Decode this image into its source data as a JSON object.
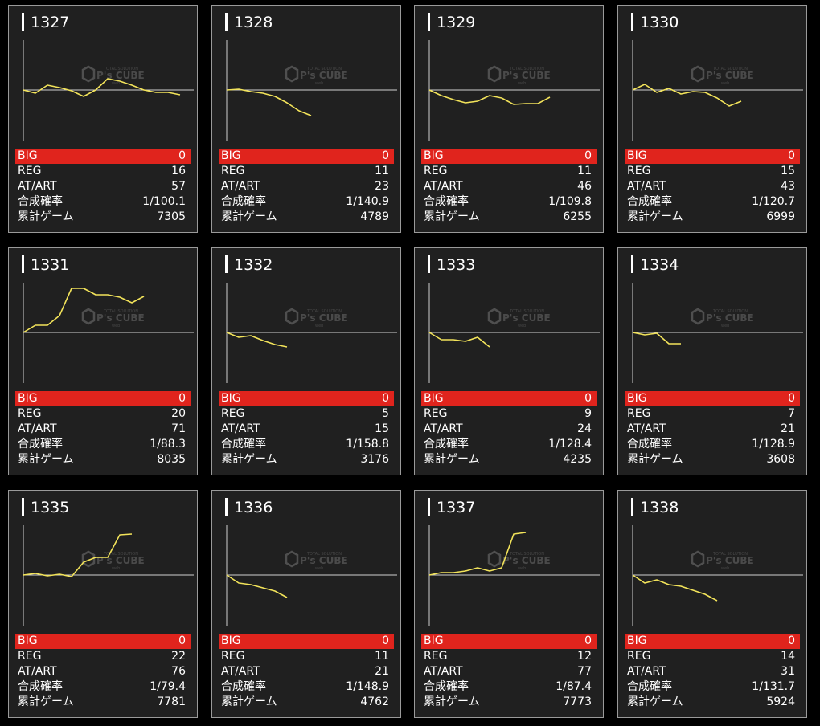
{
  "labels": {
    "big": "BIG",
    "reg": "REG",
    "at_art": "AT/ART",
    "combined_prob": "合成確率",
    "total_games": "累計ゲーム"
  },
  "watermark": {
    "small_top": "TOTAL SOLUTION",
    "main": "P's CUBE",
    "small_bottom": "web"
  },
  "colors": {
    "card_bg": "#202020",
    "card_border": "#9a9a9a",
    "big_row": "#e0241d",
    "graph_line": "#f2e35a",
    "axis": "#d0d0d0"
  },
  "machines": [
    {
      "number": "1327",
      "big": "0",
      "reg": "16",
      "at_art": "57",
      "prob": "1/100.1",
      "games": "7305",
      "trend": [
        0,
        -4,
        6,
        3,
        -1,
        -8,
        0,
        14,
        11,
        6,
        0,
        -3,
        -3,
        -6
      ]
    },
    {
      "number": "1328",
      "big": "0",
      "reg": "11",
      "at_art": "23",
      "prob": "1/140.9",
      "games": "4789",
      "trend": [
        0,
        1,
        -2,
        -4,
        -8,
        -16,
        -26,
        -32
      ]
    },
    {
      "number": "1329",
      "big": "0",
      "reg": "11",
      "at_art": "46",
      "prob": "1/109.8",
      "games": "6255",
      "trend": [
        0,
        -7,
        -12,
        -16,
        -14,
        -7,
        -10,
        -18,
        -17,
        -17,
        -9
      ]
    },
    {
      "number": "1330",
      "big": "0",
      "reg": "15",
      "at_art": "43",
      "prob": "1/120.7",
      "games": "6999",
      "trend": [
        0,
        7,
        -3,
        2,
        -5,
        -2,
        -3,
        -10,
        -20,
        -14
      ]
    },
    {
      "number": "1331",
      "big": "0",
      "reg": "20",
      "at_art": "71",
      "prob": "1/88.3",
      "games": "8035",
      "trend": [
        0,
        9,
        9,
        21,
        55,
        55,
        47,
        47,
        44,
        37,
        45
      ]
    },
    {
      "number": "1332",
      "big": "0",
      "reg": "5",
      "at_art": "15",
      "prob": "1/158.8",
      "games": "3176",
      "trend": [
        0,
        -6,
        -4,
        -10,
        -15,
        -18
      ]
    },
    {
      "number": "1333",
      "big": "0",
      "reg": "9",
      "at_art": "24",
      "prob": "1/128.4",
      "games": "4235",
      "trend": [
        0,
        -9,
        -9,
        -11,
        -6,
        -18
      ]
    },
    {
      "number": "1334",
      "big": "0",
      "reg": "7",
      "at_art": "21",
      "prob": "1/128.9",
      "games": "3608",
      "trend": [
        0,
        -3,
        -1,
        -14,
        -14
      ]
    },
    {
      "number": "1335",
      "big": "0",
      "reg": "22",
      "at_art": "76",
      "prob": "1/79.4",
      "games": "7781",
      "trend": [
        0,
        2,
        -1,
        1,
        -2,
        16,
        22,
        22,
        50,
        51
      ]
    },
    {
      "number": "1336",
      "big": "0",
      "reg": "11",
      "at_art": "21",
      "prob": "1/148.9",
      "games": "4762",
      "trend": [
        0,
        -10,
        -12,
        -16,
        -20,
        -28
      ]
    },
    {
      "number": "1337",
      "big": "0",
      "reg": "12",
      "at_art": "77",
      "prob": "1/87.4",
      "games": "7773",
      "trend": [
        0,
        3,
        3,
        5,
        9,
        5,
        9,
        51,
        53
      ]
    },
    {
      "number": "1338",
      "big": "0",
      "reg": "14",
      "at_art": "31",
      "prob": "1/131.7",
      "games": "5924",
      "trend": [
        0,
        -10,
        -6,
        -12,
        -14,
        -19,
        -24,
        -32
      ]
    }
  ]
}
